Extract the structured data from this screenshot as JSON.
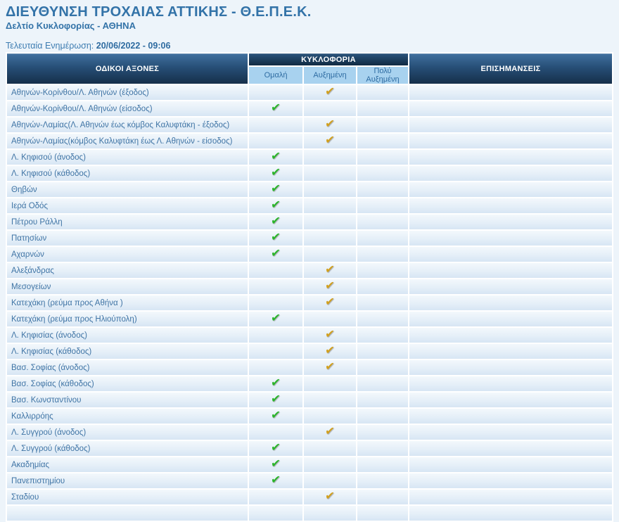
{
  "header": {
    "title": "ΔΙΕΥΘΥΝΣΗ ΤΡΟΧΑΙΑΣ ΑΤΤΙΚΗΣ - Θ.Ε.Π.Ε.Κ.",
    "subtitle": "Δελτίο Κυκλοφορίας - ΑΘΗΝΑ",
    "last_update_label": "Τελευταία Ενημέρωση:",
    "last_update_value": "20/06/2022 - 09:06"
  },
  "table": {
    "header": {
      "axes": "ΟΔΙΚΟΙ ΑΞΟΝΕΣ",
      "traffic_group": "ΚΥΚΛΟΦΟΡΙΑ",
      "levels": [
        "Ομαλή",
        "Αυξημένη",
        "Πολύ Αυξημένη"
      ],
      "notes": "ΕΠΙΣΗΜΑΝΣΕΙΣ"
    },
    "check_icon": "✔",
    "rows": [
      {
        "axis": "Αθηνών-Κορίνθου/Λ. Αθηνών (έξοδος)",
        "status": "increased",
        "note": ""
      },
      {
        "axis": "Αθηνών-Κορίνθου/Λ. Αθηνών (είσοδος)",
        "status": "normal",
        "note": ""
      },
      {
        "axis": "Αθηνών-Λαμίας(Λ. Αθηνών έως κόμβος Καλυφτάκη - έξοδος)",
        "status": "increased",
        "note": ""
      },
      {
        "axis": "Αθηνών-Λαμίας(κόμβος Καλυφτάκη έως Λ. Αθηνών - είσοδος)",
        "status": "increased",
        "note": ""
      },
      {
        "axis": "Λ. Κηφισού (άνοδος)",
        "status": "normal",
        "note": ""
      },
      {
        "axis": "Λ. Κηφισού (κάθοδος)",
        "status": "normal",
        "note": ""
      },
      {
        "axis": "Θηβών",
        "status": "normal",
        "note": ""
      },
      {
        "axis": "Ιερά Οδός",
        "status": "normal",
        "note": ""
      },
      {
        "axis": "Πέτρου Ράλλη",
        "status": "normal",
        "note": ""
      },
      {
        "axis": "Πατησίων",
        "status": "normal",
        "note": ""
      },
      {
        "axis": "Αχαρνών",
        "status": "normal",
        "note": ""
      },
      {
        "axis": "Αλεξάνδρας",
        "status": "increased",
        "note": ""
      },
      {
        "axis": "Μεσογείων",
        "status": "increased",
        "note": ""
      },
      {
        "axis": "Κατεχάκη (ρεύμα προς Αθήνα )",
        "status": "increased",
        "note": ""
      },
      {
        "axis": "Κατεχάκη (ρεύμα προς Ηλιούπολη)",
        "status": "normal",
        "note": ""
      },
      {
        "axis": "Λ. Κηφισίας (άνοδος)",
        "status": "increased",
        "note": ""
      },
      {
        "axis": "Λ. Κηφισίας (κάθοδος)",
        "status": "increased",
        "note": ""
      },
      {
        "axis": "Βασ. Σοφίας (άνοδος)",
        "status": "increased",
        "note": ""
      },
      {
        "axis": "Βασ. Σοφίας (κάθοδος)",
        "status": "normal",
        "note": ""
      },
      {
        "axis": "Βασ. Κωνσταντίνου",
        "status": "normal",
        "note": ""
      },
      {
        "axis": "Καλλιρρόης",
        "status": "normal",
        "note": ""
      },
      {
        "axis": "Λ. Συγγρού (άνοδος)",
        "status": "increased",
        "note": ""
      },
      {
        "axis": "Λ. Συγγρού (κάθοδος)",
        "status": "normal",
        "note": ""
      },
      {
        "axis": "Ακαδημίας",
        "status": "normal",
        "note": ""
      },
      {
        "axis": "Πανεπιστημίου",
        "status": "normal",
        "note": ""
      },
      {
        "axis": "Σταδίου",
        "status": "increased",
        "note": ""
      }
    ]
  },
  "colors": {
    "normal_check": "#2ab52a",
    "increased_check": "#d2a01d",
    "header_dark_top": "#41719f",
    "header_dark_bottom": "#152f4a",
    "subheader_bg": "#a8d2ef",
    "accent_text": "#3373a8"
  }
}
